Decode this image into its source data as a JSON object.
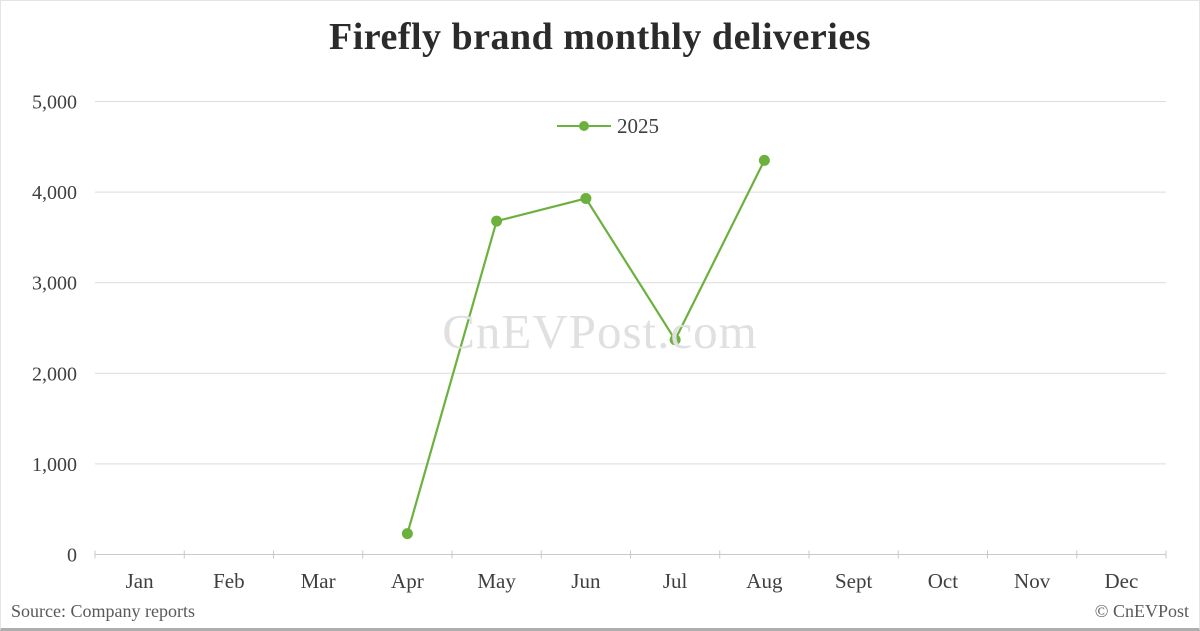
{
  "page": {
    "title": "Firefly brand monthly deliveries",
    "source_note": "Source: Company reports",
    "copyright": "© CnEVPost",
    "watermark": "CnEVPost.com"
  },
  "chart_data": {
    "type": "line",
    "title": "Firefly brand monthly deliveries",
    "categories": [
      "Jan",
      "Feb",
      "Mar",
      "Apr",
      "May",
      "Jun",
      "Jul",
      "Aug",
      "Sept",
      "Oct",
      "Nov",
      "Dec"
    ],
    "series": [
      {
        "name": "2025",
        "color": "#6cb13e",
        "values": [
          null,
          null,
          null,
          230,
          3680,
          3930,
          2370,
          4350,
          null,
          null,
          null,
          null
        ]
      }
    ],
    "ylim": [
      0,
      5000
    ],
    "ytick_step": 1000,
    "yticks": [
      0,
      1000,
      2000,
      3000,
      4000,
      5000
    ],
    "ytick_labels": [
      "0",
      "1,000",
      "2,000",
      "3,000",
      "4,000",
      "5,000"
    ],
    "xlabel": "",
    "ylabel": "",
    "grid": "horizontal",
    "legend_position": "top-center"
  },
  "colors": {
    "series_green": "#6cb13e",
    "gridline": "#dcdcdc",
    "axis_line": "#c9c9c9",
    "axis_text": "#3f3f3f",
    "title_text": "#2b2b2b",
    "watermark_text": "#e0e0e0",
    "footer_text": "#595959"
  }
}
